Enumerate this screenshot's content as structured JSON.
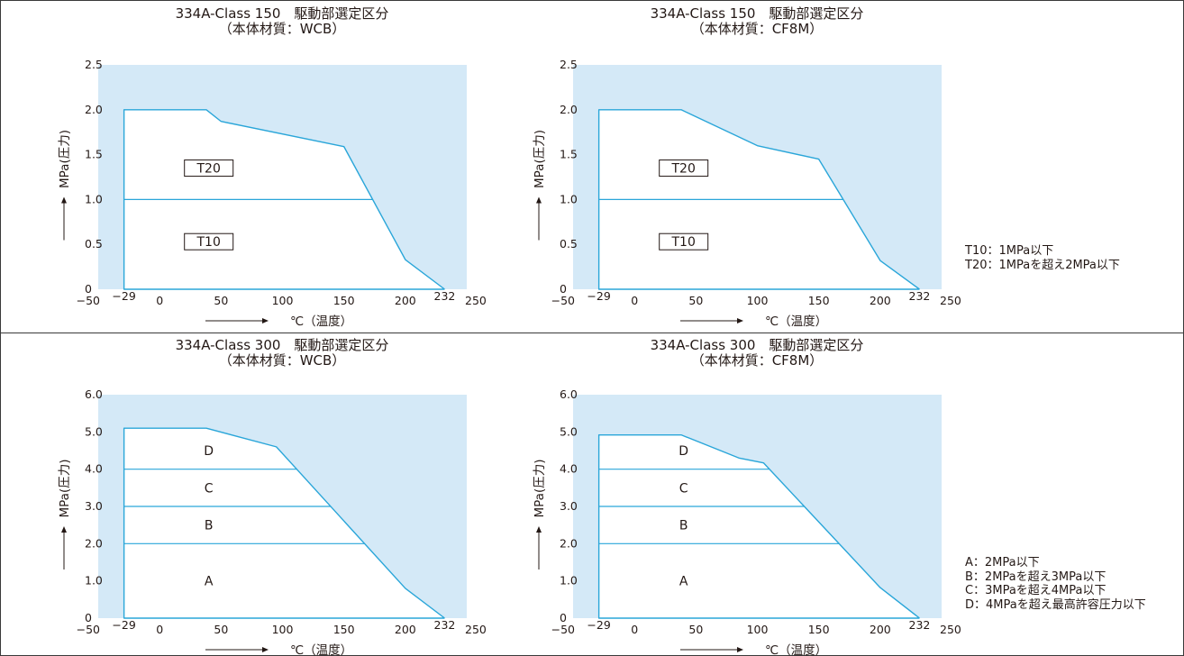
{
  "charts": [
    {
      "title": "334A-Class 150　駆動部選定区分",
      "subtitle": "（本体材質：WCB）",
      "ylabel": "MPa(圧力)",
      "xlabel": "℃（温度）",
      "yticks": [
        "0",
        "0.5",
        "1.0",
        "1.5",
        "2.0",
        "2.5"
      ]
    },
    {
      "title": "334A-Class 150　駆動部選定区分",
      "subtitle": "（本体材質：CF8M）",
      "ylabel": "MPa(圧力)",
      "xlabel": "℃（温度）",
      "yticks": [
        "0",
        "0.5",
        "1.0",
        "1.5",
        "2.0",
        "2.5"
      ]
    },
    {
      "title": "334A-Class 300　駆動部選定区分",
      "subtitle": "（本体材質：WCB）",
      "ylabel": "MPa(圧力)",
      "xlabel": "℃（温度）",
      "yticks": [
        "0",
        "1.0",
        "2.0",
        "3.0",
        "4.0",
        "5.0",
        "6.0"
      ]
    },
    {
      "title": "334A-Class 300　駆動部選定区分",
      "subtitle": "（本体材質：CF8M）",
      "ylabel": "MPa(圧力)",
      "xlabel": "℃（温度）",
      "yticks": [
        "0",
        "1.0",
        "2.0",
        "3.0",
        "4.0",
        "5.0",
        "6.0"
      ]
    }
  ],
  "xticks": [
    "−50",
    "−29",
    "0",
    "50",
    "100",
    "150",
    "200",
    "232",
    "250"
  ],
  "legend_top": [
    "T10：1MPa以下",
    "T20：1MPaを超え2MPa以下"
  ],
  "legend_bottom": [
    "A：2MPa以下",
    "B：2MPaを超え3MPa以下",
    "C：3MPaを超え4MPa以下",
    "D：4MPaを超え最高許容圧力以下"
  ],
  "colors": {
    "plot_bg": "#d4e9f7",
    "curve": "#2aa6d9",
    "text": "#231815",
    "box_border": "#231815",
    "frame": "#3a3a3a"
  },
  "chart_data": [
    {
      "type": "area",
      "title": "334A-Class 150　駆動部選定区分",
      "xlim": [
        -50,
        250
      ],
      "ylim": [
        0,
        2.5
      ],
      "xticks": [
        -50,
        -29,
        0,
        50,
        100,
        150,
        200,
        232,
        250
      ],
      "yticks": [
        0,
        0.5,
        1.0,
        1.5,
        2.0,
        2.5
      ],
      "boundary": {
        "x": [
          -29,
          38,
          50,
          150,
          200,
          232
        ],
        "y": [
          2.0,
          2.0,
          1.87,
          1.59,
          0.33,
          0
        ]
      },
      "zone_lines": [
        1.0
      ],
      "zones": [
        {
          "label": "T20",
          "x": 40,
          "y": 1.35,
          "boxed": true
        },
        {
          "label": "T10",
          "x": 40,
          "y": 0.53,
          "boxed": true
        }
      ]
    },
    {
      "type": "area",
      "title": "334A-Class 150　駆動部選定区分",
      "xlim": [
        -50,
        250
      ],
      "ylim": [
        0,
        2.5
      ],
      "xticks": [
        -50,
        -29,
        0,
        50,
        100,
        150,
        200,
        232,
        250
      ],
      "yticks": [
        0,
        0.5,
        1.0,
        1.5,
        2.0,
        2.5
      ],
      "boundary": {
        "x": [
          -29,
          38,
          100,
          150,
          200,
          232
        ],
        "y": [
          2.0,
          2.0,
          1.6,
          1.45,
          0.32,
          0
        ]
      },
      "zone_lines": [
        1.0
      ],
      "zones": [
        {
          "label": "T20",
          "x": 40,
          "y": 1.35,
          "boxed": true
        },
        {
          "label": "T10",
          "x": 40,
          "y": 0.53,
          "boxed": true
        }
      ]
    },
    {
      "type": "area",
      "title": "334A-Class 300　駆動部選定区分",
      "xlim": [
        -50,
        250
      ],
      "ylim": [
        0,
        6.0
      ],
      "xticks": [
        -50,
        -29,
        0,
        50,
        100,
        150,
        200,
        232,
        250
      ],
      "yticks": [
        0,
        1.0,
        2.0,
        3.0,
        4.0,
        5.0,
        6.0
      ],
      "boundary": {
        "x": [
          -29,
          38,
          95,
          200,
          232
        ],
        "y": [
          5.1,
          5.1,
          4.6,
          0.8,
          0
        ]
      },
      "zone_lines": [
        2.0,
        3.0,
        4.0
      ],
      "zones": [
        {
          "label": "D",
          "x": 40,
          "y": 4.5,
          "boxed": false
        },
        {
          "label": "C",
          "x": 40,
          "y": 3.5,
          "boxed": false
        },
        {
          "label": "B",
          "x": 40,
          "y": 2.5,
          "boxed": false
        },
        {
          "label": "A",
          "x": 40,
          "y": 1.0,
          "boxed": false
        }
      ]
    },
    {
      "type": "area",
      "title": "334A-Class 300　駆動部選定区分",
      "xlim": [
        -50,
        250
      ],
      "ylim": [
        0,
        6.0
      ],
      "xticks": [
        -50,
        -29,
        0,
        50,
        100,
        150,
        200,
        232,
        250
      ],
      "yticks": [
        0,
        1.0,
        2.0,
        3.0,
        4.0,
        5.0,
        6.0
      ],
      "boundary": {
        "x": [
          -29,
          38,
          85,
          105,
          200,
          232
        ],
        "y": [
          4.92,
          4.92,
          4.3,
          4.17,
          0.82,
          0
        ]
      },
      "zone_lines": [
        2.0,
        3.0,
        4.0
      ],
      "zones": [
        {
          "label": "D",
          "x": 40,
          "y": 4.5,
          "boxed": false
        },
        {
          "label": "C",
          "x": 40,
          "y": 3.5,
          "boxed": false
        },
        {
          "label": "B",
          "x": 40,
          "y": 2.5,
          "boxed": false
        },
        {
          "label": "A",
          "x": 40,
          "y": 1.0,
          "boxed": false
        }
      ]
    }
  ]
}
